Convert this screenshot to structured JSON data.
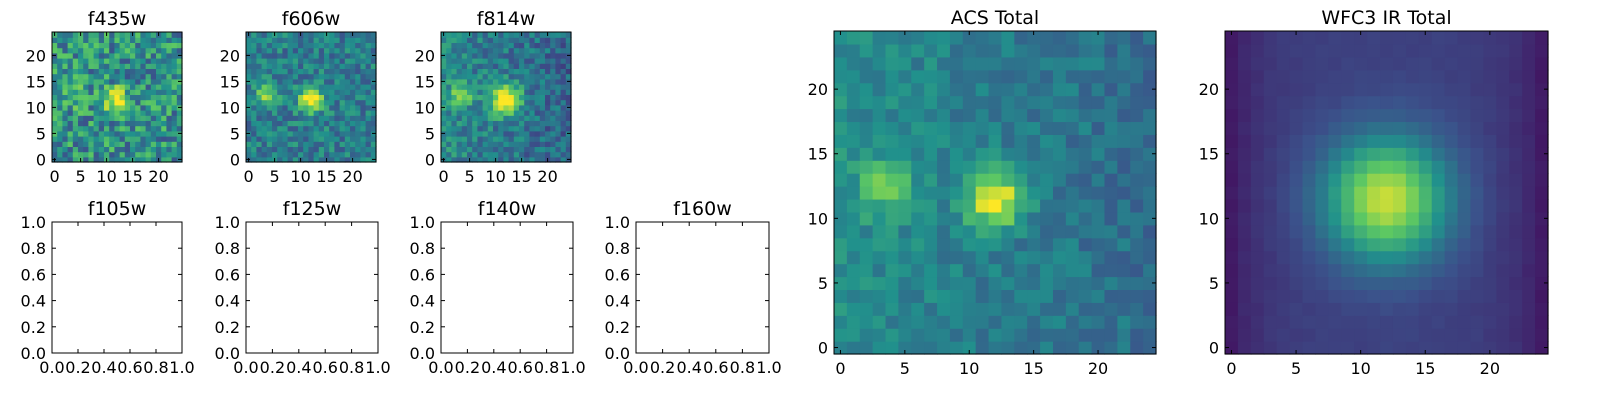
{
  "colormap": "viridis",
  "colors": {
    "frame": "#000000",
    "background": "#ffffff",
    "viridis_stops": [
      "#440154",
      "#3b528b",
      "#21918c",
      "#5ec962",
      "#fde725"
    ]
  },
  "chart_data": [
    {
      "type": "heatmap",
      "title": "f435w",
      "grid": false,
      "xlim": [
        -0.5,
        24.5
      ],
      "ylim": [
        -0.5,
        24.5
      ],
      "xticks": [
        0,
        5,
        10,
        15,
        20
      ],
      "yticks": [
        0,
        5,
        10,
        15,
        20
      ],
      "sources": [
        {
          "x": 12,
          "y": 11.5,
          "amp": 0.55,
          "sigma": 1.6
        },
        {
          "x": 3.5,
          "y": 12.5,
          "amp": 0.3,
          "sigma": 1.5
        }
      ],
      "base": 0.5,
      "slope": 0.0,
      "noise": 0.5,
      "seed": 11
    },
    {
      "type": "heatmap",
      "title": "f606w",
      "grid": false,
      "xlim": [
        -0.5,
        24.5
      ],
      "ylim": [
        -0.5,
        24.5
      ],
      "xticks": [
        0,
        5,
        10,
        15,
        20
      ],
      "yticks": [
        0,
        5,
        10,
        15,
        20
      ],
      "sources": [
        {
          "x": 12,
          "y": 11.5,
          "amp": 0.7,
          "sigma": 1.6
        },
        {
          "x": 3.5,
          "y": 12.5,
          "amp": 0.4,
          "sigma": 1.6
        }
      ],
      "base": 0.42,
      "slope": 0.0,
      "noise": 0.32,
      "seed": 23
    },
    {
      "type": "heatmap",
      "title": "f814w",
      "grid": false,
      "xlim": [
        -0.5,
        24.5
      ],
      "ylim": [
        -0.5,
        24.5
      ],
      "xticks": [
        0,
        5,
        10,
        15,
        20
      ],
      "yticks": [
        0,
        5,
        10,
        15,
        20
      ],
      "sources": [
        {
          "x": 12,
          "y": 11.5,
          "amp": 0.75,
          "sigma": 2.0
        },
        {
          "x": 3.5,
          "y": 12.5,
          "amp": 0.35,
          "sigma": 1.6
        }
      ],
      "base": 0.4,
      "slope": -0.006,
      "noise": 0.3,
      "seed": 37
    },
    {
      "type": "scatter",
      "title": "f105w",
      "grid": false,
      "xlim": [
        0.0,
        1.0
      ],
      "ylim": [
        0.0,
        1.0
      ],
      "xticklabels": [
        "0.0",
        "0.2",
        "0.4",
        "0.6",
        "0.8",
        "1.0"
      ],
      "yticklabels": [
        "0.0",
        "0.2",
        "0.4",
        "0.6",
        "0.8",
        "1.0"
      ],
      "x": [],
      "y": []
    },
    {
      "type": "scatter",
      "title": "f125w",
      "grid": false,
      "xlim": [
        0.0,
        1.0
      ],
      "ylim": [
        0.0,
        1.0
      ],
      "xticklabels": [
        "0.0",
        "0.2",
        "0.4",
        "0.6",
        "0.8",
        "1.0"
      ],
      "yticklabels": [
        "0.0",
        "0.2",
        "0.4",
        "0.6",
        "0.8",
        "1.0"
      ],
      "x": [],
      "y": []
    },
    {
      "type": "scatter",
      "title": "f140w",
      "grid": false,
      "xlim": [
        0.0,
        1.0
      ],
      "ylim": [
        0.0,
        1.0
      ],
      "xticklabels": [
        "0.0",
        "0.2",
        "0.4",
        "0.6",
        "0.8",
        "1.0"
      ],
      "yticklabels": [
        "0.0",
        "0.2",
        "0.4",
        "0.6",
        "0.8",
        "1.0"
      ],
      "x": [],
      "y": []
    },
    {
      "type": "scatter",
      "title": "f160w",
      "grid": false,
      "xlim": [
        0.0,
        1.0
      ],
      "ylim": [
        0.0,
        1.0
      ],
      "xticklabels": [
        "0.0",
        "0.2",
        "0.4",
        "0.6",
        "0.8",
        "1.0"
      ],
      "yticklabels": [
        "0.0",
        "0.2",
        "0.4",
        "0.6",
        "0.8",
        "1.0"
      ],
      "x": [],
      "y": []
    },
    {
      "type": "heatmap",
      "title": "ACS Total",
      "grid": false,
      "xlim": [
        -0.5,
        24.5
      ],
      "ylim": [
        -0.5,
        24.5
      ],
      "xticks": [
        0,
        5,
        10,
        15,
        20
      ],
      "yticks": [
        0,
        5,
        10,
        15,
        20
      ],
      "sources": [
        {
          "x": 12,
          "y": 11.5,
          "amp": 0.6,
          "sigma": 1.5
        },
        {
          "x": 3.5,
          "y": 12.5,
          "amp": 0.3,
          "sigma": 1.5
        }
      ],
      "base": 0.42,
      "slope": -0.005,
      "noise": 0.18,
      "seed": 53
    },
    {
      "type": "heatmap",
      "title": "WFC3 IR Total",
      "grid": false,
      "xlim": [
        -0.5,
        24.5
      ],
      "ylim": [
        -0.5,
        24.5
      ],
      "xticks": [
        0,
        5,
        10,
        15,
        20
      ],
      "yticks": [
        0,
        5,
        10,
        15,
        20
      ],
      "sources": [
        {
          "x": 12,
          "y": 11.5,
          "amp": 0.72,
          "sigma": 3.3
        }
      ],
      "base": 0.2,
      "slope": 0.0,
      "noise": 0.02,
      "edge": 0.12,
      "seed": 71
    }
  ]
}
